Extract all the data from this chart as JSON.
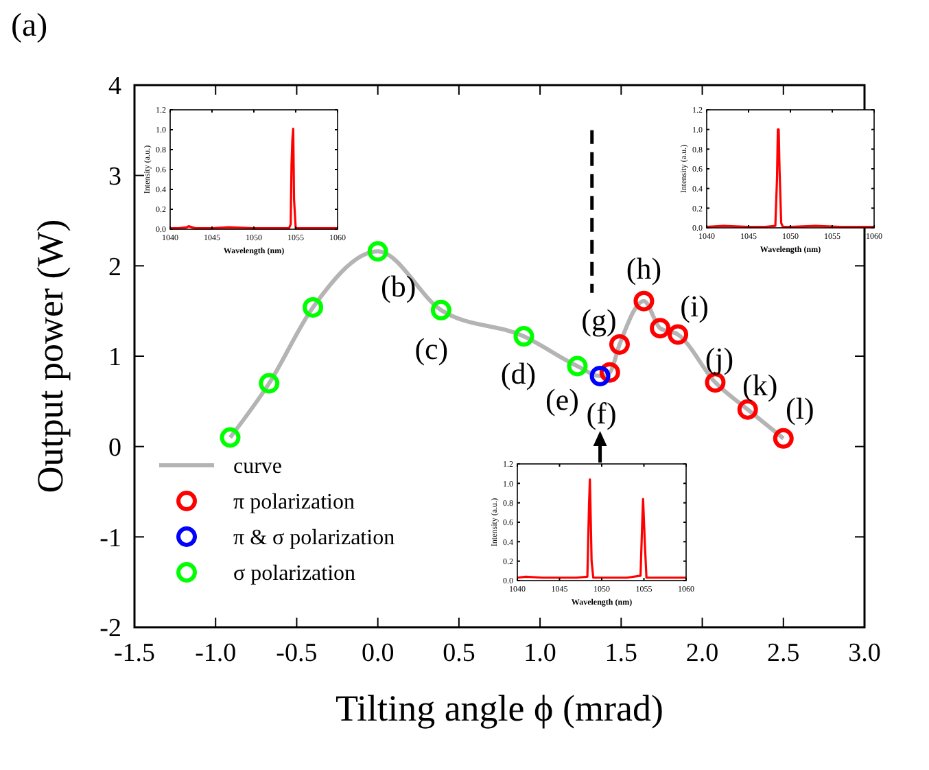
{
  "chart_data": [
    {
      "type": "scatter",
      "title": "(a)",
      "xlabel": "Tilting angle ϕ (mrad)",
      "ylabel": "Output power (W)",
      "xlim": [
        -1.5,
        3.0
      ],
      "ylim": [
        -2,
        4
      ],
      "xticks": [
        {
          "value": -1.5,
          "label": "-1.5"
        },
        {
          "value": -1.0,
          "label": "-1.0"
        },
        {
          "value": -0.5,
          "label": "-0.5"
        },
        {
          "value": 0,
          "label": "0.0"
        },
        {
          "value": 0.5,
          "label": "0.5"
        },
        {
          "value": 1.0,
          "label": "1.0"
        },
        {
          "value": 1.5,
          "label": "1.5"
        },
        {
          "value": 2.0,
          "label": "2.0"
        },
        {
          "value": 2.5,
          "label": "2.5"
        },
        {
          "value": 3.0,
          "label": "3.0"
        }
      ],
      "yticks": [
        -2,
        -1,
        0,
        1,
        2,
        3,
        4
      ],
      "grid": false,
      "legend": "bottom left",
      "marker": "circle",
      "series": [
        {
          "name": "curve",
          "type": "line",
          "color": "#b4b4b4",
          "marker": "none",
          "x": [
            -0.91,
            -0.67,
            -0.4,
            0.0,
            0.39,
            0.9,
            1.23,
            1.37,
            1.43,
            1.49,
            1.64,
            1.74,
            1.85,
            2.08,
            2.28,
            2.5
          ],
          "values": [
            0.1,
            0.7,
            1.54,
            2.16,
            1.51,
            1.22,
            0.89,
            0.78,
            0.82,
            1.13,
            1.61,
            1.31,
            1.24,
            0.71,
            0.41,
            0.09
          ]
        },
        {
          "name": "π polarization",
          "color": "#ff0000",
          "x": [
            1.43,
            1.49,
            1.64,
            1.74,
            1.85,
            2.08,
            2.28,
            2.5
          ],
          "values": [
            0.82,
            1.13,
            1.61,
            1.31,
            1.24,
            0.71,
            0.41,
            0.09
          ]
        },
        {
          "name": "π & σ polarization",
          "color": "#0000ff",
          "x": [
            1.37
          ],
          "values": [
            0.78
          ]
        },
        {
          "name": "σ polarization",
          "color": "#00ff00",
          "x": [
            -0.91,
            -0.67,
            -0.4,
            0.0,
            0.39,
            0.9,
            1.23
          ],
          "values": [
            0.1,
            0.7,
            1.54,
            2.16,
            1.51,
            1.22,
            0.89
          ]
        }
      ],
      "ref_lines": [
        {
          "axis": "x",
          "value": 1.32,
          "line_style": "dashed",
          "color": "#000000"
        }
      ],
      "annotations": [
        {
          "text": "(b)",
          "x": 0.0,
          "y": 2.16
        },
        {
          "text": "(c)",
          "x": 0.39,
          "y": 1.51
        },
        {
          "text": "(d)",
          "x": 0.9,
          "y": 1.22
        },
        {
          "text": "(e)",
          "x": 1.23,
          "y": 0.89
        },
        {
          "text": "(f)",
          "x": 1.37,
          "y": 0.78
        },
        {
          "text": "(g)",
          "x": 1.49,
          "y": 1.13
        },
        {
          "text": "(h)",
          "x": 1.64,
          "y": 1.61
        },
        {
          "text": "(i)",
          "x": 1.85,
          "y": 1.24
        },
        {
          "text": "(j)",
          "x": 2.08,
          "y": 0.71
        },
        {
          "text": "(k)",
          "x": 2.28,
          "y": 0.41
        },
        {
          "text": "(l)",
          "x": 2.5,
          "y": 0.09
        }
      ]
    },
    {
      "type": "line",
      "xlabel": "Wavelength (nm)",
      "ylabel": "Intensity (a.u.)",
      "xlim": [
        1040,
        1060
      ],
      "ylim": [
        0,
        1.2
      ],
      "xticks": [
        1040,
        1045,
        1050,
        1055,
        1060
      ],
      "yticks": [
        {
          "value": 0,
          "label": "0.0"
        },
        {
          "value": 0.2,
          "label": "0.2"
        },
        {
          "value": 0.4,
          "label": "0.4"
        },
        {
          "value": 0.6,
          "label": "0.6"
        },
        {
          "value": 0.8,
          "label": "0.8"
        },
        {
          "value": 1.0,
          "label": "1.0"
        },
        {
          "value": 1.2,
          "label": "1.2"
        }
      ],
      "grid": false,
      "series": [
        {
          "color": "#ff0000",
          "x": [
            1040,
            1041,
            1042,
            1042.2,
            1043,
            1045,
            1047,
            1050,
            1052,
            1054.2,
            1054.4,
            1054.5,
            1054.6,
            1054.7,
            1054.8,
            1055,
            1057,
            1060
          ],
          "values": [
            0.01,
            0.01,
            0.02,
            0.03,
            0.01,
            0.01,
            0.02,
            0.01,
            0.01,
            0.01,
            0.05,
            0.65,
            0.9,
            1.01,
            0.3,
            0.01,
            0.01,
            0.01
          ]
        }
      ]
    },
    {
      "type": "line",
      "xlabel": "Wavelength (nm)",
      "ylabel": "Intensity (a.u.)",
      "xlim": [
        1040,
        1060
      ],
      "ylim": [
        0,
        1.2
      ],
      "xticks": [
        1040,
        1045,
        1050,
        1055,
        1060
      ],
      "yticks": [
        {
          "value": 0,
          "label": "0.0"
        },
        {
          "value": 0.2,
          "label": "0.2"
        },
        {
          "value": 0.4,
          "label": "0.4"
        },
        {
          "value": 0.6,
          "label": "0.6"
        },
        {
          "value": 0.8,
          "label": "0.8"
        },
        {
          "value": 1.0,
          "label": "1.0"
        },
        {
          "value": 1.2,
          "label": "1.2"
        }
      ],
      "grid": false,
      "series": [
        {
          "color": "#ff0000",
          "x": [
            1040,
            1042,
            1045,
            1047,
            1048.2,
            1048.4,
            1048.5,
            1048.6,
            1048.7,
            1048.9,
            1049.1,
            1050,
            1053,
            1056,
            1060
          ],
          "values": [
            0.01,
            0.02,
            0.01,
            0.01,
            0.02,
            0.5,
            1.0,
            1.0,
            0.6,
            0.05,
            0.01,
            0.01,
            0.02,
            0.01,
            0.01
          ]
        }
      ]
    },
    {
      "type": "line",
      "xlabel": "Wavelength (nm)",
      "ylabel": "Intensity (a.u.)",
      "xlim": [
        1040,
        1060
      ],
      "ylim": [
        0,
        1.2
      ],
      "xticks": [
        1040,
        1045,
        1050,
        1055,
        1060
      ],
      "yticks": [
        {
          "value": 0,
          "label": "0.0"
        },
        {
          "value": 0.2,
          "label": "0.2"
        },
        {
          "value": 0.4,
          "label": "0.4"
        },
        {
          "value": 0.6,
          "label": "0.6"
        },
        {
          "value": 0.8,
          "label": "0.8"
        },
        {
          "value": 1.0,
          "label": "1.0"
        },
        {
          "value": 1.2,
          "label": "1.2"
        }
      ],
      "grid": false,
      "series": [
        {
          "color": "#ff0000",
          "x": [
            1040,
            1041,
            1043,
            1045,
            1047,
            1048.3,
            1048.5,
            1048.6,
            1048.8,
            1049,
            1051,
            1053,
            1054.6,
            1054.8,
            1054.9,
            1055.1,
            1055.3,
            1057,
            1060
          ],
          "values": [
            0.03,
            0.04,
            0.03,
            0.03,
            0.03,
            0.04,
            0.8,
            1.04,
            0.2,
            0.03,
            0.03,
            0.03,
            0.05,
            0.6,
            0.84,
            0.4,
            0.03,
            0.03,
            0.03
          ]
        }
      ]
    }
  ]
}
